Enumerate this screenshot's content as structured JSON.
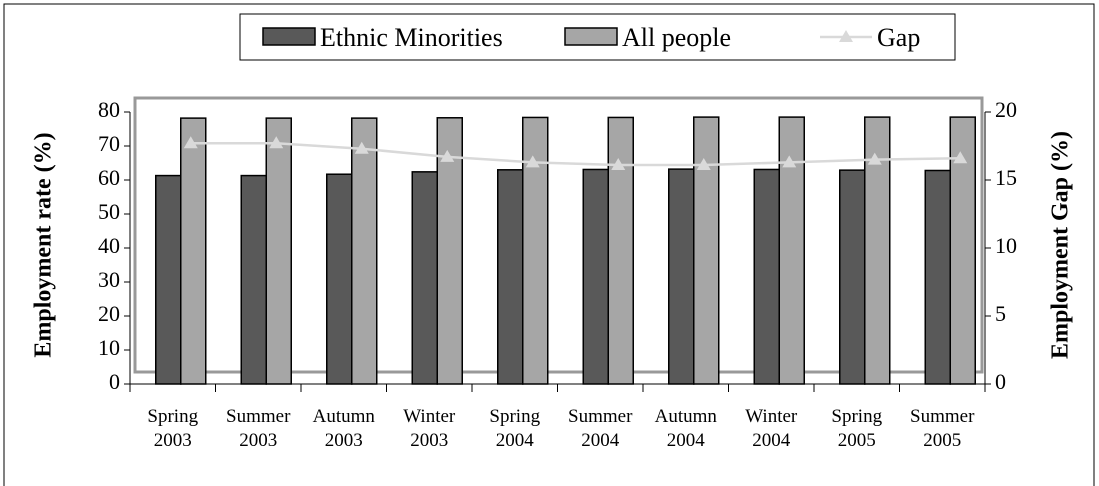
{
  "chart_data": {
    "type": "bar",
    "categories": [
      "Spring 2003",
      "Summer 2003",
      "Autumn 2003",
      "Winter 2003",
      "Spring 2004",
      "Summer 2004",
      "Autumn 2004",
      "Winter 2004",
      "Spring 2005",
      "Summer 2005"
    ],
    "series": [
      {
        "name": "Ethnic Minorities",
        "color": "#595959",
        "values": [
          61.3,
          61.3,
          61.7,
          62.4,
          63.0,
          63.1,
          63.2,
          63.1,
          62.9,
          62.8
        ]
      },
      {
        "name": "All people",
        "color": "#a6a6a6",
        "values": [
          78.2,
          78.2,
          78.2,
          78.3,
          78.4,
          78.4,
          78.5,
          78.5,
          78.5,
          78.5
        ]
      },
      {
        "name": "Gap",
        "type": "line",
        "axis": "y2",
        "color": "#d9d9d9",
        "values": [
          17.7,
          17.7,
          17.3,
          16.7,
          16.3,
          16.1,
          16.1,
          16.3,
          16.5,
          16.6
        ]
      }
    ],
    "y_label": "Employment rate (%)",
    "y2_label": "Employment Gap (%)",
    "ylim": [
      0,
      80
    ],
    "yticks": [
      0,
      10,
      20,
      30,
      40,
      50,
      60,
      70,
      80
    ],
    "y2lim": [
      0,
      20
    ],
    "y2ticks": [
      0,
      5,
      10,
      15,
      20
    ],
    "legend": "top",
    "grid": false
  }
}
